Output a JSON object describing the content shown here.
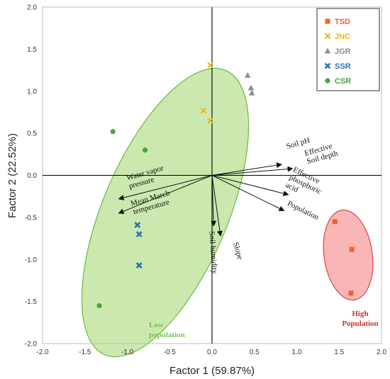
{
  "chart_data": {
    "type": "scatter",
    "subtype": "pca-biplot",
    "xlabel": "Factor 1 (59.87%)",
    "ylabel": "Factor 2 (22.52%)",
    "xlim": [
      -2.0,
      2.0
    ],
    "ylim": [
      -2.0,
      2.0
    ],
    "xticks": [
      "-2.0",
      "-1.5",
      "-1.0",
      "-0.5",
      "0.0",
      "0.5",
      "1.0",
      "1.5",
      "2.0"
    ],
    "yticks": [
      "-2.0",
      "-1.5",
      "-1.0",
      "-0.5",
      "0.0",
      "0.5",
      "1.0",
      "1.5",
      "2.0"
    ],
    "grid": false,
    "legend_position": "top-right",
    "series": [
      {
        "name": "TSD",
        "color": "#f0622d",
        "marker": "square",
        "points": [
          [
            1.45,
            -0.55
          ],
          [
            1.65,
            -0.88
          ],
          [
            1.64,
            -1.4
          ]
        ]
      },
      {
        "name": "JNC",
        "color": "#f3b21a",
        "marker": "x",
        "points": [
          [
            -0.02,
            1.31
          ],
          [
            -0.1,
            0.77
          ],
          [
            -0.02,
            0.65
          ]
        ]
      },
      {
        "name": "JGR",
        "color": "#8c8c8c",
        "marker": "triangle",
        "points": [
          [
            0.42,
            1.19
          ],
          [
            0.46,
            1.04
          ],
          [
            0.47,
            0.98
          ]
        ]
      },
      {
        "name": "SSR",
        "color": "#2c6fbd",
        "marker": "x-bold",
        "points": [
          [
            -0.88,
            -0.59
          ],
          [
            -0.86,
            -0.7
          ],
          [
            -0.86,
            -1.07
          ]
        ]
      },
      {
        "name": "CSR",
        "color": "#4ba43a",
        "marker": "circle",
        "points": [
          [
            -1.17,
            0.52
          ],
          [
            -0.79,
            0.3
          ],
          [
            -1.33,
            -1.55
          ]
        ]
      }
    ],
    "vectors": [
      {
        "label": [
          "Soil pH"
        ],
        "x": 0.82,
        "y": 0.13
      },
      {
        "label": [
          "Effective",
          "Soil depth"
        ],
        "x": 0.95,
        "y": 0.08
      },
      {
        "label": [
          "Effective",
          "phosphoric",
          "acid"
        ],
        "x": 0.9,
        "y": -0.23
      },
      {
        "label": [
          "Population"
        ],
        "x": 0.85,
        "y": -0.42
      },
      {
        "label": [
          "Water vapor",
          "pressure"
        ],
        "x": -1.1,
        "y": -0.28
      },
      {
        "label": [
          "Mean March",
          "temperature"
        ],
        "x": -1.1,
        "y": -0.45
      },
      {
        "label": [
          "Soil humidity"
        ],
        "x": 0.02,
        "y": -0.6
      },
      {
        "label": [
          "Slope"
        ],
        "x": 0.1,
        "y": -0.72
      }
    ],
    "annotations": [
      {
        "text": [
          "Low",
          "population"
        ],
        "color": "#7cc35a"
      },
      {
        "text": [
          "High",
          "Population"
        ],
        "color": "#d0302c"
      }
    ]
  }
}
